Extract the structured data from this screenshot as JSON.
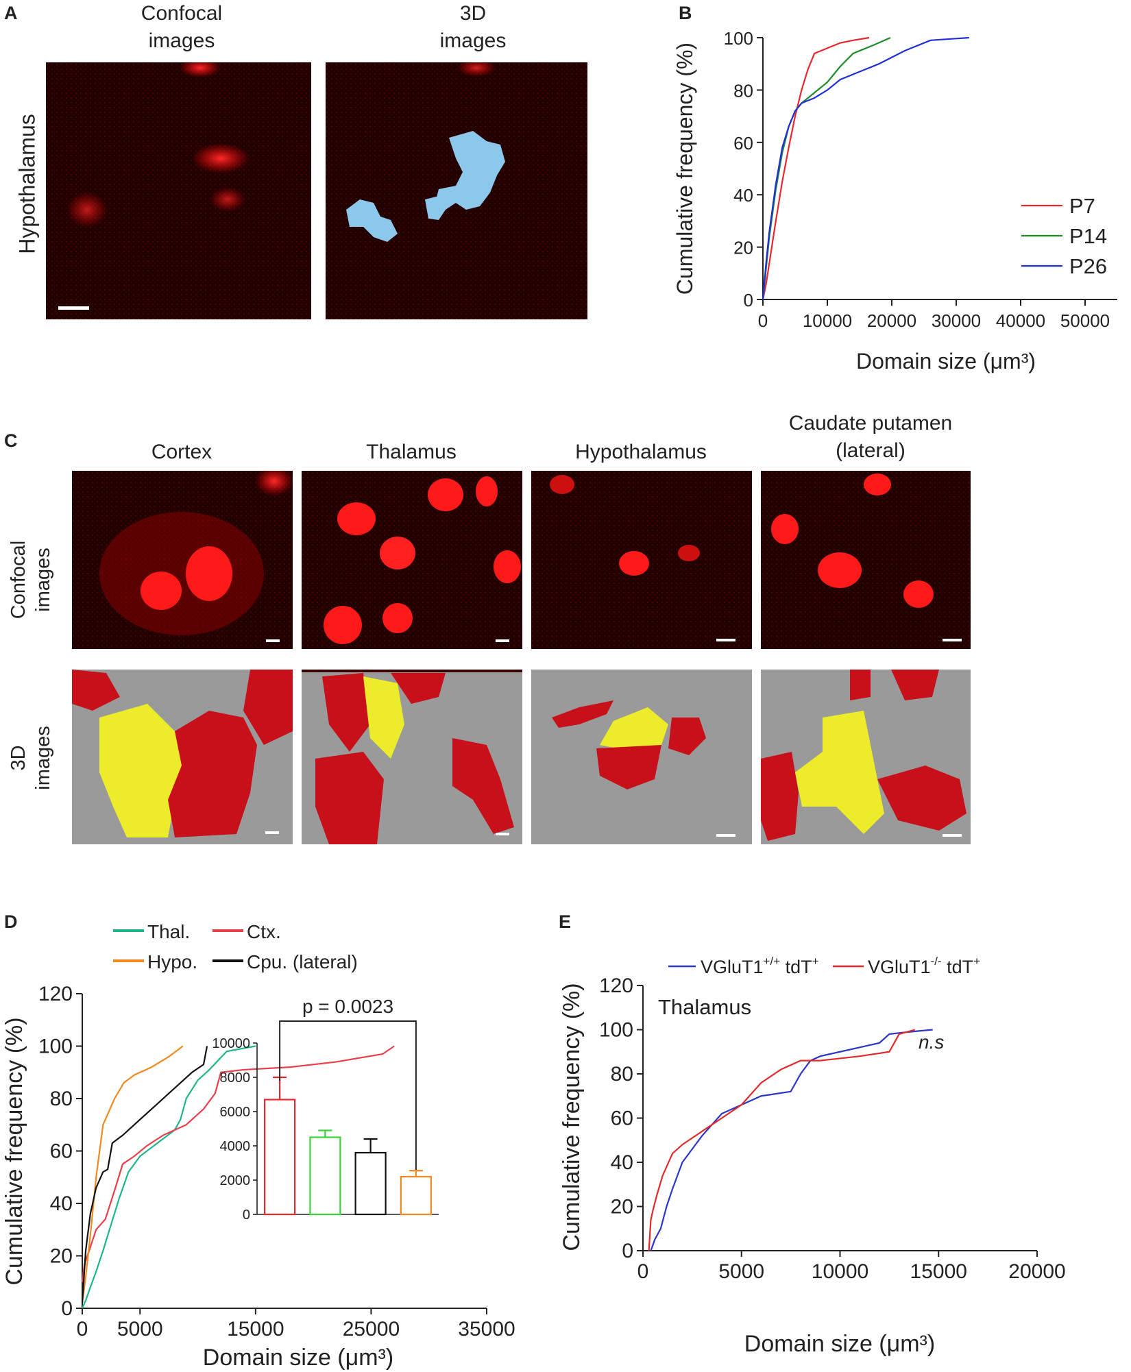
{
  "panelA": {
    "label": "A",
    "col_confocal": "Confocal\nimages",
    "col_3d": "3D\nimages",
    "row_label": "Hypothalamus"
  },
  "panelB": {
    "label": "B",
    "ylabel": "Cumulative frequency (%)",
    "xlabel": "Domain size (μm³)"
  },
  "panelC": {
    "label": "C",
    "columns": [
      "Cortex",
      "Thalamus",
      "Hypothalamus",
      "Caudate putamen\n(lateral)"
    ],
    "row_confocal": "Confocal\nimages",
    "row_3d": "3D\nimages"
  },
  "panelD": {
    "label": "D",
    "ylabel": "Cumulative frequency (%)",
    "xlabel": "Domain size (μm³)",
    "p_value": "p = 0.0023"
  },
  "panelE": {
    "label": "E",
    "ylabel": "Cumulative frequency (%)",
    "xlabel": "Domain size (μm³)",
    "region": "Thalamus",
    "ns": "n.s"
  },
  "colors": {
    "P7": "#e8262b",
    "P14": "#1f8a2c",
    "P26": "#1f2fd6",
    "Thal": "#1fb58a",
    "Ctx": "#e8404a",
    "Hypo": "#f08a1e",
    "Cpu": "#111111",
    "bar_green": "#38d43a",
    "WT": "#2a35c9",
    "KO": "#e02a2a",
    "confocal_bg": "#230000",
    "render_bg": "#9a9a9a",
    "render_yellow": "#ecec2a",
    "render_red": "#c8101a",
    "render_blue": "#8cc8ec"
  },
  "chart_data": [
    {
      "id": "B",
      "type": "line",
      "xlabel": "Domain size (μm³)",
      "ylabel": "Cumulative frequency (%)",
      "xlim": [
        0,
        55000
      ],
      "ylim": [
        0,
        100
      ],
      "xticks": [
        0,
        10000,
        20000,
        30000,
        40000,
        50000
      ],
      "yticks": [
        0,
        20,
        40,
        60,
        80,
        100
      ],
      "legend_position": "right",
      "series": [
        {
          "name": "P7",
          "color": "#e8262b",
          "x": [
            0,
            500,
            1000,
            1500,
            2000,
            3000,
            4000,
            5000,
            6000,
            7000,
            8000,
            9000,
            10000,
            12000,
            14000,
            16500
          ],
          "y": [
            0,
            6,
            14,
            22,
            30,
            45,
            58,
            70,
            80,
            88,
            94,
            95,
            96,
            98,
            99,
            100
          ]
        },
        {
          "name": "P14",
          "color": "#1f8a2c",
          "x": [
            0,
            500,
            1000,
            2000,
            3000,
            4000,
            5000,
            6000,
            8000,
            10000,
            12000,
            14000,
            17000,
            19800
          ],
          "y": [
            0,
            12,
            24,
            42,
            56,
            66,
            72,
            75,
            79,
            83,
            89,
            94,
            97,
            100
          ]
        },
        {
          "name": "P26",
          "color": "#1f2fd6",
          "x": [
            0,
            500,
            1000,
            2000,
            3000,
            4000,
            5000,
            6000,
            8000,
            10000,
            12000,
            15000,
            18000,
            22000,
            26000,
            32000
          ],
          "y": [
            0,
            14,
            26,
            44,
            58,
            66,
            72,
            75,
            77,
            80,
            84,
            87,
            90,
            95,
            99,
            100
          ]
        }
      ]
    },
    {
      "id": "D",
      "type": "line",
      "xlabel": "Domain size (μm³)",
      "ylabel": "Cumulative frequency (%)",
      "xlim": [
        0,
        35000
      ],
      "ylim": [
        0,
        120
      ],
      "xticks": [
        0,
        5000,
        15000,
        25000,
        35000
      ],
      "yticks": [
        0,
        20,
        40,
        60,
        80,
        100,
        120
      ],
      "legend_position": "top",
      "series": [
        {
          "name": "Thal.",
          "color": "#1fb58a",
          "x": [
            0,
            300,
            700,
            1200,
            1800,
            2500,
            3200,
            4000,
            5000,
            6500,
            8000,
            8500,
            9000,
            10000,
            11000,
            12500,
            15000
          ],
          "y": [
            0,
            3,
            8,
            14,
            22,
            32,
            42,
            52,
            58,
            63,
            68,
            72,
            80,
            87,
            91,
            98,
            100
          ]
        },
        {
          "name": "Ctx.",
          "color": "#e8404a",
          "x": [
            0,
            200,
            600,
            1200,
            2000,
            2800,
            3500,
            4500,
            5600,
            7000,
            9000,
            10500,
            11500,
            12000,
            14000,
            18000,
            22000,
            26000,
            27000
          ],
          "y": [
            10,
            17,
            22,
            30,
            34,
            45,
            55,
            58,
            62,
            66,
            70,
            76,
            82,
            90,
            91,
            92,
            94,
            97,
            100
          ]
        },
        {
          "name": "Hypo.",
          "color": "#f08a1e",
          "x": [
            0,
            300,
            700,
            1200,
            1800,
            2200,
            2800,
            3600,
            4500,
            6000,
            7500,
            8700
          ],
          "y": [
            2,
            12,
            28,
            50,
            70,
            74,
            80,
            86,
            89,
            92,
            96,
            100
          ]
        },
        {
          "name": "Cpu. (lateral)",
          "color": "#111111",
          "x": [
            0,
            300,
            700,
            1200,
            1800,
            2200,
            2600,
            3500,
            5000,
            6500,
            7500,
            8500,
            9500,
            10500,
            10800
          ],
          "y": [
            2,
            22,
            36,
            46,
            52,
            53,
            63,
            66,
            72,
            78,
            82,
            86,
            90,
            93,
            100
          ]
        }
      ]
    },
    {
      "id": "D-inset",
      "type": "bar",
      "categories": [
        "Ctx.",
        "Thal.",
        "Cpu. (lateral)",
        "Hypo."
      ],
      "values": [
        6700,
        4500,
        3600,
        2200
      ],
      "errors": [
        1300,
        400,
        800,
        350
      ],
      "colors": [
        "#e8262b",
        "#38d43a",
        "#111111",
        "#f08a1e"
      ],
      "ylim": [
        0,
        10000
      ],
      "yticks": [
        0,
        2000,
        4000,
        6000,
        8000,
        10000
      ],
      "annotation": "p = 0.0023"
    },
    {
      "id": "E",
      "type": "line",
      "title": "Thalamus",
      "xlabel": "Domain size (μm³)",
      "ylabel": "Cumulative frequency (%)",
      "xlim": [
        0,
        20000
      ],
      "ylim": [
        0,
        120
      ],
      "xticks": [
        0,
        5000,
        10000,
        15000,
        20000
      ],
      "yticks": [
        0,
        20,
        40,
        60,
        80,
        100,
        120
      ],
      "legend_position": "top",
      "annotation": "n.s",
      "series": [
        {
          "name": "VGluT1+/+ tdT+",
          "color": "#2a35c9",
          "x": [
            400,
            600,
            900,
            1200,
            1500,
            2000,
            3000,
            4000,
            5000,
            6000,
            7500,
            8000,
            8500,
            9000,
            10000,
            11000,
            12000,
            12500,
            13500,
            14700
          ],
          "y": [
            0,
            5,
            10,
            20,
            28,
            40,
            52,
            62,
            66,
            70,
            72,
            80,
            86,
            88,
            90,
            92,
            94,
            98,
            99,
            100
          ]
        },
        {
          "name": "VGluT1-/- tdT+",
          "color": "#e02a2a",
          "x": [
            300,
            400,
            500,
            700,
            1000,
            1500,
            2000,
            3000,
            4000,
            5000,
            6000,
            7000,
            8000,
            9000,
            10000,
            11000,
            12500,
            13000,
            13800
          ],
          "y": [
            0,
            14,
            18,
            25,
            34,
            44,
            48,
            54,
            60,
            66,
            76,
            82,
            86,
            86,
            87,
            88,
            90,
            98,
            100
          ]
        }
      ]
    }
  ]
}
